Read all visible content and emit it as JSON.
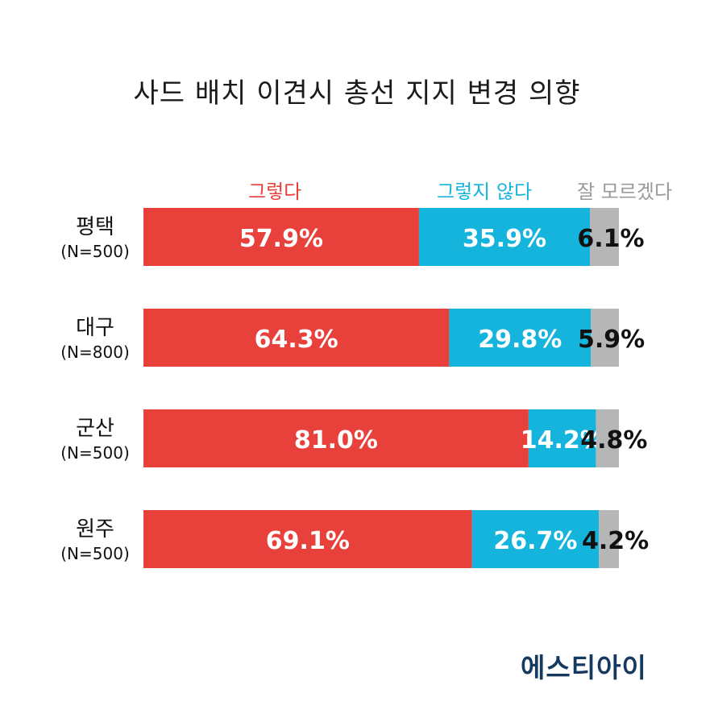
{
  "chart_data": {
    "type": "bar",
    "stacked": true,
    "orientation": "horizontal",
    "title": "사드 배치 이견시 총선 지지 변경 의향",
    "categories": [
      "평택",
      "대구",
      "군산",
      "원주"
    ],
    "category_sublabels": [
      "(N=500)",
      "(N=800)",
      "(N=500)",
      "(N=500)"
    ],
    "series": [
      {
        "name": "그렇다",
        "color": "#e8403a",
        "values": [
          57.9,
          64.3,
          81.0,
          69.1
        ],
        "labels": [
          "57.9%",
          "64.3%",
          "81.0%",
          "69.1%"
        ]
      },
      {
        "name": "그렇지 않다",
        "color": "#14b4dc",
        "values": [
          35.9,
          29.8,
          14.2,
          26.7
        ],
        "labels": [
          "35.9%",
          "29.8%",
          "14.2%",
          "26.7%"
        ]
      },
      {
        "name": "잘 모르겠다",
        "color": "#b6b6b6",
        "values": [
          6.1,
          5.9,
          4.8,
          4.2
        ],
        "labels": [
          "6.1%",
          "5.9%",
          "4.8%",
          "4.2%"
        ]
      }
    ],
    "legend_placement": "top",
    "grid": false
  },
  "logo": {
    "text": "에스티아이"
  }
}
